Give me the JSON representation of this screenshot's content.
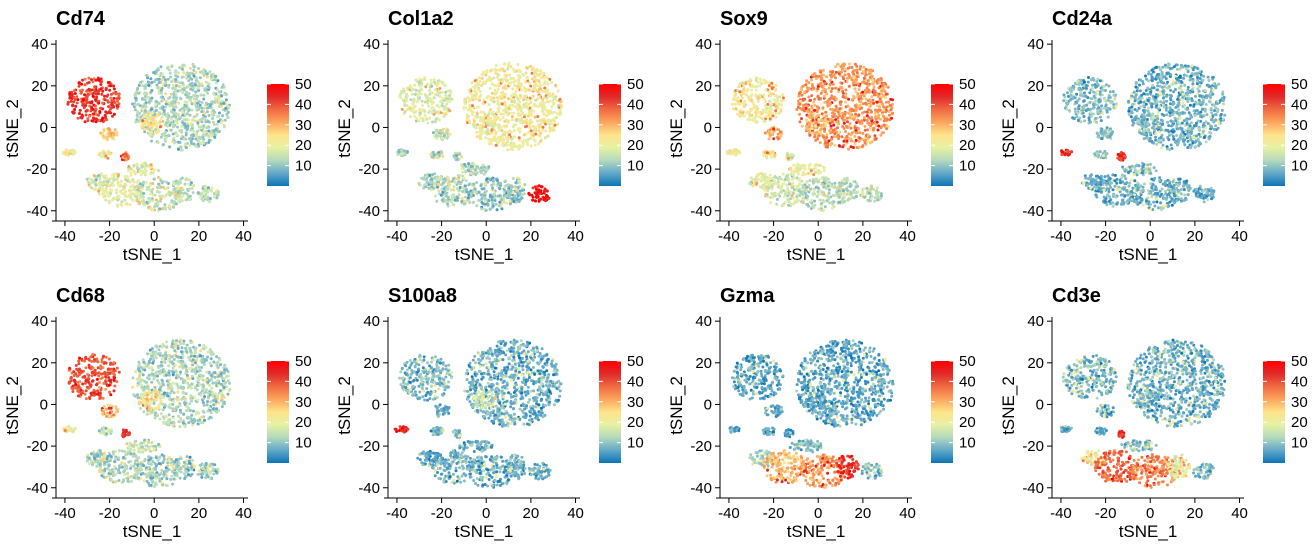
{
  "chart_data": {
    "type": "scatter",
    "xlabel": "tSNE_1",
    "ylabel": "tSNE_2",
    "xlim": [
      -44,
      42
    ],
    "ylim": [
      -43,
      42
    ],
    "x_ticks": [
      -40,
      -20,
      0,
      20,
      40
    ],
    "y_ticks": [
      -40,
      -20,
      0,
      20,
      40
    ],
    "grid": false,
    "legend_position": "right",
    "color_scale": {
      "min": 0,
      "max": 50,
      "ticks": [
        10,
        20,
        30,
        40,
        50
      ],
      "colors": [
        "#0a75b6",
        "#63a8c9",
        "#b3d9bd",
        "#e6f1a3",
        "#fee38c",
        "#fca55d",
        "#f06a42",
        "#e02a2a",
        "#ff0000"
      ]
    },
    "clusters": [
      {
        "id": "macrophage",
        "cx": -27,
        "cy": 13,
        "rx": 12,
        "ry": 11
      },
      {
        "id": "large_main",
        "cx": 12,
        "cy": 10,
        "rx": 22,
        "ry": 21
      },
      {
        "id": "left_mid",
        "cx": -20,
        "cy": -3,
        "rx": 4,
        "ry": 3
      },
      {
        "id": "center_small",
        "cx": -1,
        "cy": 2,
        "rx": 5,
        "ry": 5
      },
      {
        "id": "left_small",
        "cx": -38,
        "cy": -12,
        "rx": 3,
        "ry": 1.5
      },
      {
        "id": "small_a",
        "cx": -13,
        "cy": -14,
        "rx": 2,
        "ry": 2
      },
      {
        "id": "small_b",
        "cx": -22,
        "cy": -13,
        "rx": 3,
        "ry": 2
      },
      {
        "id": "bottom_mid",
        "cx": -25,
        "cy": -26,
        "rx": 6,
        "ry": 4
      },
      {
        "id": "bottom_left",
        "cx": -15,
        "cy": -30,
        "rx": 10,
        "ry": 8
      },
      {
        "id": "bottom_center",
        "cx": 2,
        "cy": -32,
        "rx": 11,
        "ry": 8
      },
      {
        "id": "bottom_right",
        "cx": 13,
        "cy": -30,
        "rx": 5,
        "ry": 6
      },
      {
        "id": "bottom_far",
        "cx": 24,
        "cy": -32,
        "rx": 5,
        "ry": 4
      },
      {
        "id": "mid_strip",
        "cx": -5,
        "cy": -20,
        "rx": 8,
        "ry": 3
      }
    ],
    "panels": [
      {
        "gene": "Cd74",
        "cluster_levels": {
          "macrophage": 42,
          "large_main": 12,
          "left_mid": 28,
          "center_small": 24,
          "left_small": 22,
          "small_a": 35,
          "small_b": 20,
          "bottom_mid": 16,
          "bottom_left": 18,
          "bottom_center": 15,
          "bottom_right": 14,
          "bottom_far": 14,
          "mid_strip": 18
        }
      },
      {
        "gene": "Col1a2",
        "cluster_levels": {
          "macrophage": 18,
          "large_main": 22,
          "left_mid": 14,
          "center_small": 20,
          "left_small": 12,
          "small_a": 12,
          "small_b": 12,
          "bottom_mid": 12,
          "bottom_left": 12,
          "bottom_center": 10,
          "bottom_right": 10,
          "bottom_far": 48,
          "mid_strip": 12
        }
      },
      {
        "gene": "Sox9",
        "cluster_levels": {
          "macrophage": 22,
          "large_main": 33,
          "left_mid": 30,
          "center_small": 28,
          "left_small": 22,
          "small_a": 20,
          "small_b": 25,
          "bottom_mid": 18,
          "bottom_left": 16,
          "bottom_center": 14,
          "bottom_right": 14,
          "bottom_far": 14,
          "mid_strip": 20
        }
      },
      {
        "gene": "Cd24a",
        "cluster_levels": {
          "macrophage": 9,
          "large_main": 7,
          "left_mid": 10,
          "center_small": 9,
          "left_small": 44,
          "small_a": 45,
          "small_b": 10,
          "bottom_mid": 7,
          "bottom_left": 7,
          "bottom_center": 7,
          "bottom_right": 7,
          "bottom_far": 7,
          "mid_strip": 8
        }
      },
      {
        "gene": "Cd68",
        "cluster_levels": {
          "macrophage": 40,
          "large_main": 12,
          "left_mid": 30,
          "center_small": 24,
          "left_small": 20,
          "small_a": 44,
          "small_b": 14,
          "bottom_mid": 12,
          "bottom_left": 12,
          "bottom_center": 11,
          "bottom_right": 10,
          "bottom_far": 10,
          "mid_strip": 14
        }
      },
      {
        "gene": "S100a8",
        "cluster_levels": {
          "macrophage": 8,
          "large_main": 7,
          "left_mid": 8,
          "center_small": 15,
          "left_small": 45,
          "small_a": 8,
          "small_b": 8,
          "bottom_mid": 7,
          "bottom_left": 7,
          "bottom_center": 7,
          "bottom_right": 7,
          "bottom_far": 7,
          "mid_strip": 7
        }
      },
      {
        "gene": "Gzma",
        "cluster_levels": {
          "macrophage": 6,
          "large_main": 6,
          "left_mid": 6,
          "center_small": 6,
          "left_small": 6,
          "small_a": 6,
          "small_b": 6,
          "bottom_mid": 12,
          "bottom_left": 30,
          "bottom_center": 32,
          "bottom_right": 44,
          "bottom_far": 10,
          "mid_strip": 8
        }
      },
      {
        "gene": "Cd3e",
        "cluster_levels": {
          "macrophage": 8,
          "large_main": 7,
          "left_mid": 8,
          "center_small": 8,
          "left_small": 8,
          "small_a": 42,
          "small_b": 8,
          "bottom_mid": 22,
          "bottom_left": 38,
          "bottom_center": 34,
          "bottom_right": 20,
          "bottom_far": 8,
          "mid_strip": 10
        }
      }
    ]
  }
}
